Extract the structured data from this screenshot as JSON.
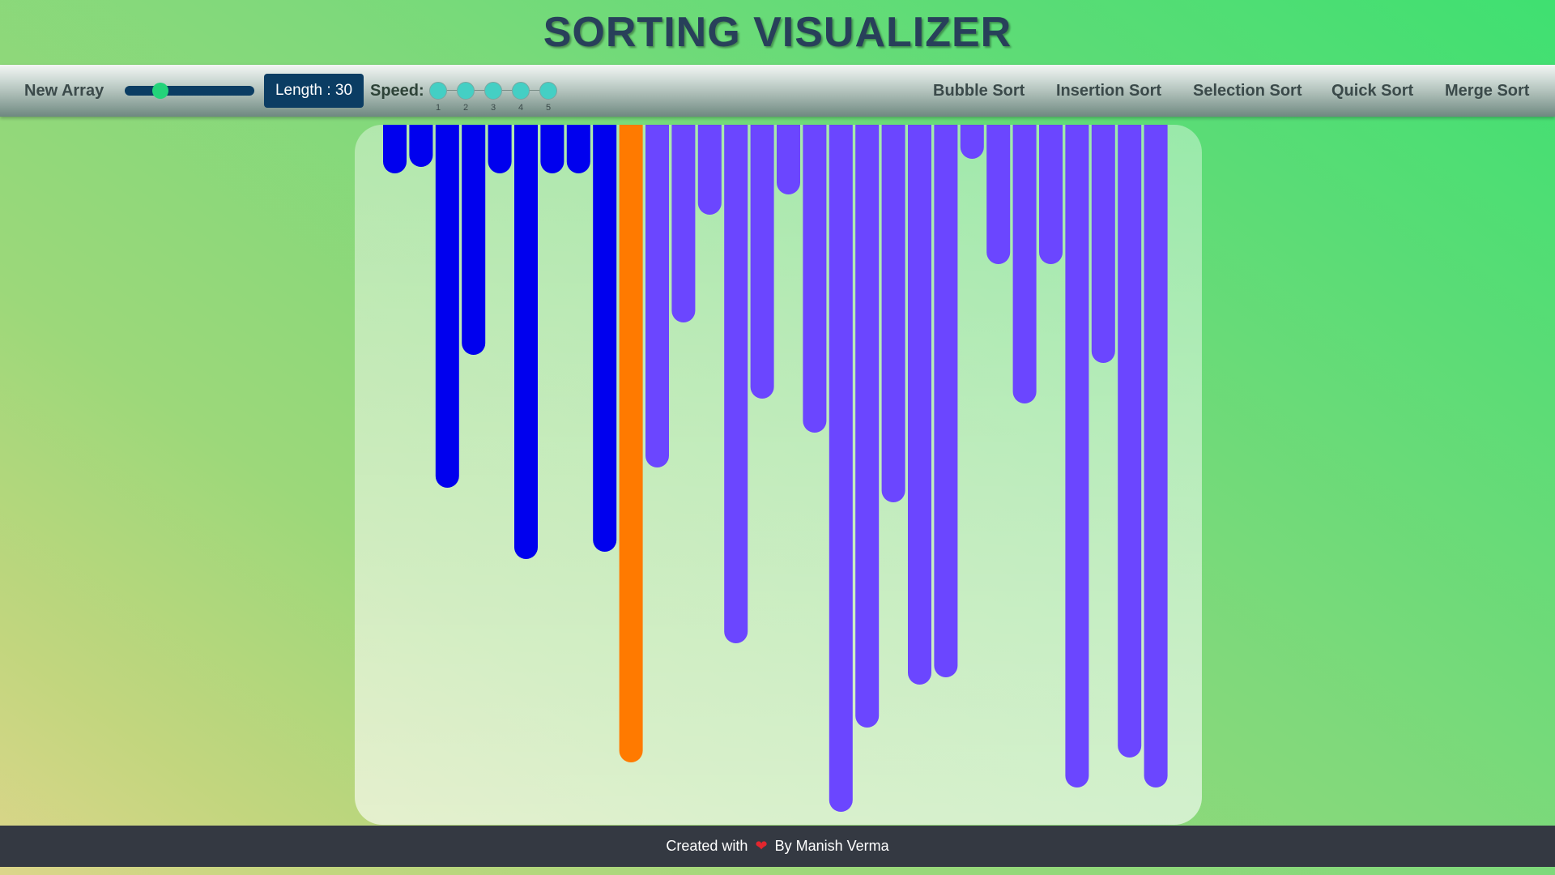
{
  "title": "SORTING VISUALIZER",
  "navbar": {
    "new_array_label": "New Array",
    "length_label": "Length : 30",
    "length_value": 30,
    "speed_label": "Speed:",
    "speed_options": [
      "1",
      "2",
      "3",
      "4",
      "5"
    ],
    "algorithms": [
      "Bubble Sort",
      "Insertion Sort",
      "Selection Sort",
      "Quick Sort",
      "Merge Sort"
    ]
  },
  "colors": {
    "sorted": "#0000ee",
    "current": "#ff7a00",
    "unsorted": "#6b46ff",
    "dark_blue": "#0b3d63",
    "accent_green": "#23d37a"
  },
  "bars": {
    "count": 30,
    "state": [
      "sorted",
      "sorted",
      "sorted",
      "sorted",
      "sorted",
      "sorted",
      "sorted",
      "sorted",
      "sorted",
      "current",
      "unsorted",
      "unsorted",
      "unsorted",
      "unsorted",
      "unsorted",
      "unsorted",
      "unsorted",
      "unsorted",
      "unsorted",
      "unsorted",
      "unsorted",
      "unsorted",
      "unsorted",
      "unsorted",
      "unsorted",
      "unsorted",
      "unsorted",
      "unsorted",
      "unsorted",
      "unsorted"
    ],
    "values": [
      60,
      52,
      448,
      284,
      60,
      536,
      60,
      60,
      527,
      787,
      423,
      244,
      111,
      640,
      338,
      86,
      380,
      848,
      744,
      466,
      691,
      682,
      42,
      172,
      344,
      172,
      818,
      294,
      781,
      818
    ]
  },
  "footer": {
    "prefix": "Created with",
    "heart_icon": "heart-icon",
    "suffix": "By Manish Verma"
  }
}
